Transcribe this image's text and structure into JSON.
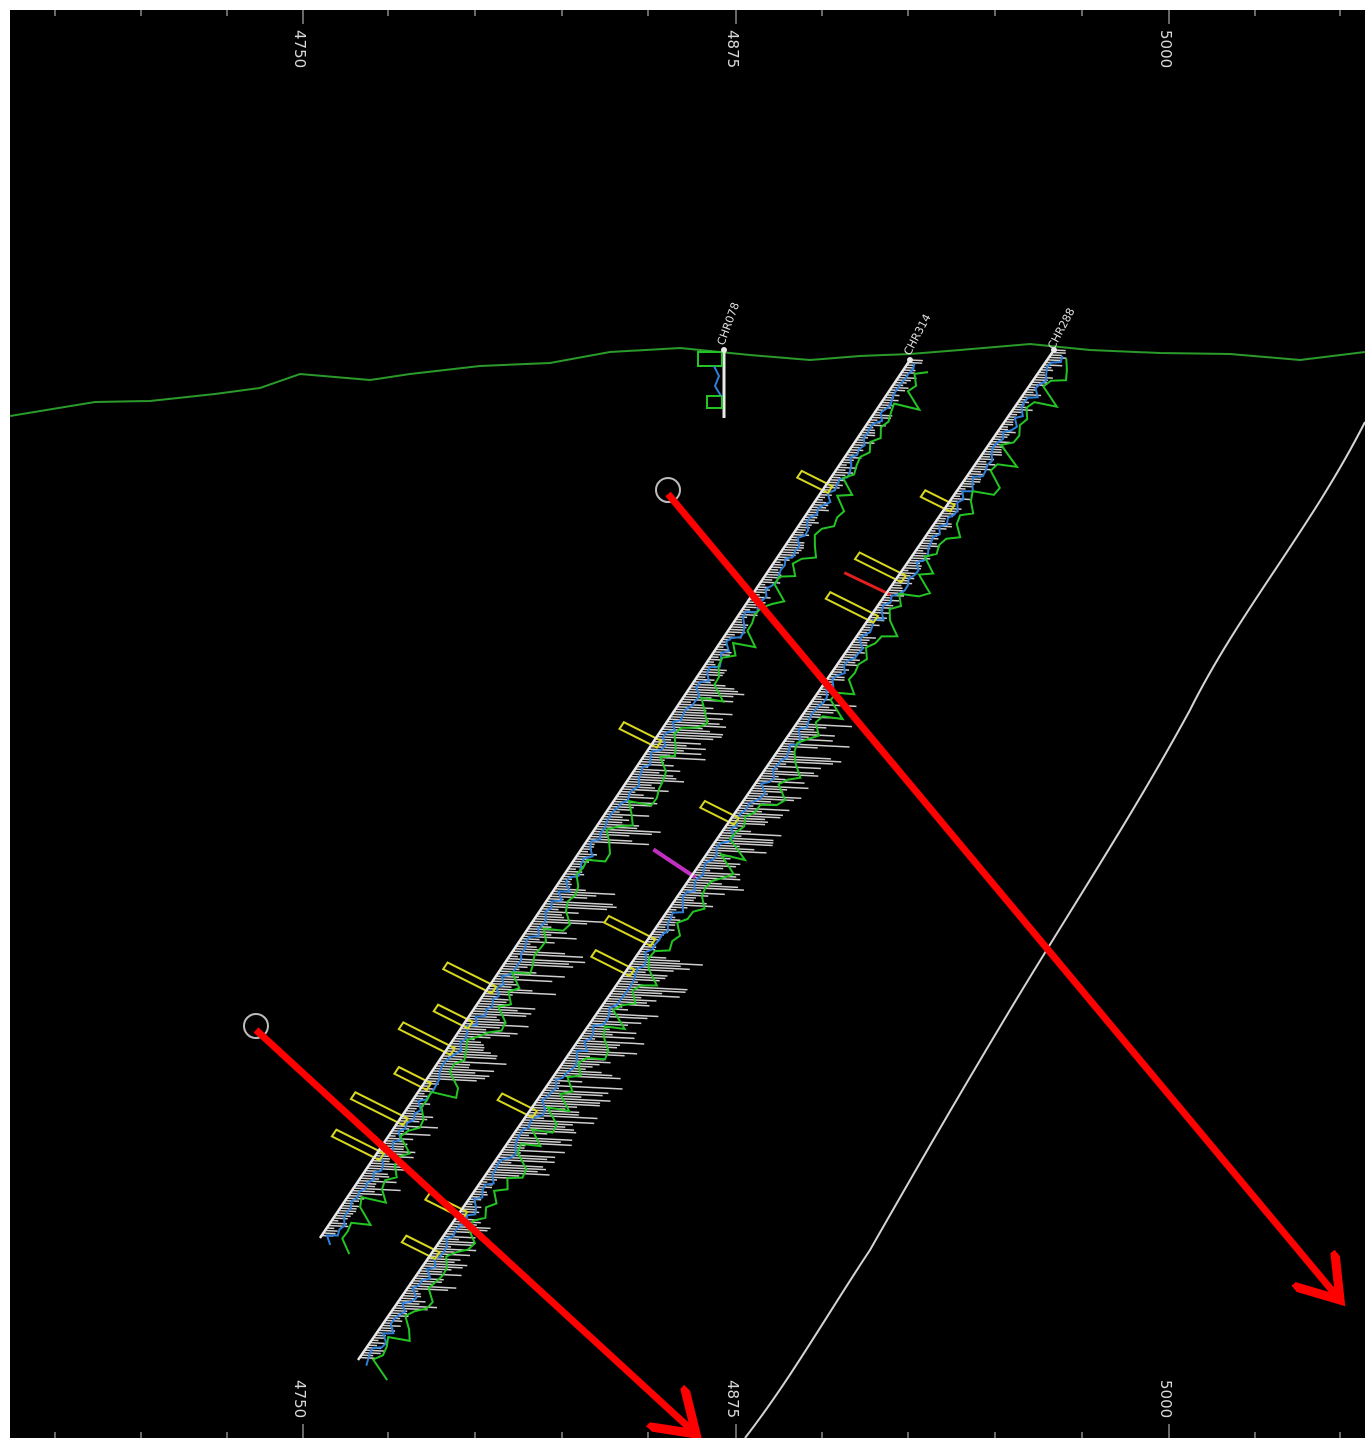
{
  "section_view": {
    "northing_labels_top": [
      "4750",
      "4875",
      "5000"
    ],
    "northing_labels_bottom": [
      "4750",
      "4875",
      "5000"
    ],
    "drillholes": [
      {
        "id": "CHR078"
      },
      {
        "id": "CHR314"
      },
      {
        "id": "CHR288"
      }
    ],
    "colors": {
      "background": "#000000",
      "topography": "#2a9a2a",
      "trace": "#e8e8e8",
      "histogram": "#cfcfcf",
      "assay_blue": "#2f7fd8",
      "assay_green": "#24c424",
      "assay_yellow": "#d8d820",
      "assay_magenta": "#c030c0",
      "assay_red": "#e02020",
      "arrow": "#ff0000"
    }
  }
}
